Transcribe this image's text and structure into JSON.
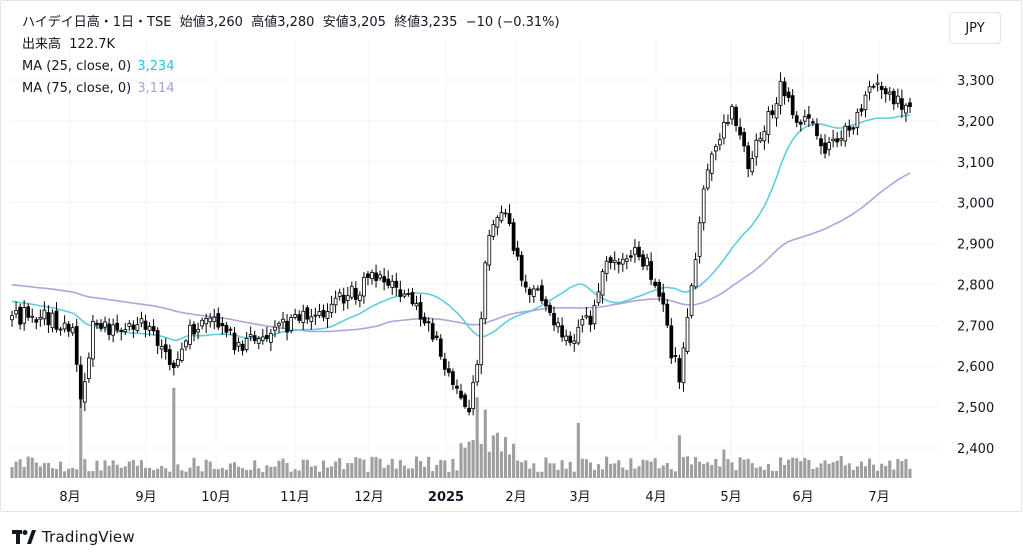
{
  "header": {
    "symbol_line": "ハイデイ日高・1日・TSE",
    "open_label": "始値",
    "open": "3,260",
    "high_label": "高値",
    "high": "3,280",
    "low_label": "安値",
    "low": "3,205",
    "close_label": "終値",
    "close": "3,235",
    "change": "−10 (−0.31%)",
    "volume_label": "出来高",
    "volume": "122.7K",
    "ma25_label": "MA (25, close, 0)",
    "ma25_value": "3,234",
    "ma75_label": "MA (75, close, 0)",
    "ma75_value": "3,114"
  },
  "currency_button": "JPY",
  "brand": "TradingView",
  "colors": {
    "up_candle": "#ffffff",
    "down_candle": "#000000",
    "wick": "#000000",
    "volume": "#9e9e9e",
    "ma25": "#5fcede",
    "ma75": "#b2a3e0",
    "grid": "#f0f3fa",
    "ma25_text": "#26c6da",
    "ma75_text": "#b39ddb"
  },
  "chart_data": {
    "type": "candlestick",
    "title": "ハイデイ日高・1日・TSE",
    "y_axis": {
      "ticks": [
        2400,
        2500,
        2600,
        2700,
        2800,
        2900,
        3000,
        3100,
        3200,
        3300
      ],
      "ylim": [
        2340,
        3370
      ],
      "position": "right"
    },
    "x_axis": {
      "tick_labels": [
        "8月",
        "9月",
        "10月",
        "11月",
        "12月",
        "2025",
        "2月",
        "3月",
        "4月",
        "5月",
        "6月",
        "7月"
      ],
      "bold_label": "2025"
    },
    "grid": true,
    "price_anchors": [
      [
        0,
        2720
      ],
      [
        8,
        2730
      ],
      [
        12,
        2690
      ],
      [
        15,
        2680
      ],
      [
        16,
        2600
      ],
      [
        17,
        2500
      ],
      [
        20,
        2690
      ],
      [
        24,
        2690
      ],
      [
        27,
        2700
      ],
      [
        30,
        2710
      ],
      [
        33,
        2700
      ],
      [
        36,
        2660
      ],
      [
        38,
        2620
      ],
      [
        40,
        2590
      ],
      [
        43,
        2680
      ],
      [
        46,
        2700
      ],
      [
        48,
        2720
      ],
      [
        50,
        2700
      ],
      [
        53,
        2680
      ],
      [
        56,
        2650
      ],
      [
        60,
        2670
      ],
      [
        64,
        2690
      ],
      [
        68,
        2700
      ],
      [
        72,
        2730
      ],
      [
        75,
        2720
      ],
      [
        80,
        2760
      ],
      [
        85,
        2780
      ],
      [
        88,
        2810
      ],
      [
        91,
        2830
      ],
      [
        95,
        2800
      ],
      [
        98,
        2760
      ],
      [
        101,
        2720
      ],
      [
        103,
        2720
      ],
      [
        105,
        2650
      ],
      [
        107,
        2600
      ],
      [
        110,
        2540
      ],
      [
        112,
        2510
      ],
      [
        113,
        2490
      ],
      [
        115,
        2600
      ],
      [
        117,
        2860
      ],
      [
        119,
        2960
      ],
      [
        121,
        2990
      ],
      [
        123,
        2930
      ],
      [
        125,
        2860
      ],
      [
        127,
        2800
      ],
      [
        129,
        2780
      ],
      [
        131,
        2760
      ],
      [
        133,
        2730
      ],
      [
        135,
        2690
      ],
      [
        137,
        2660
      ],
      [
        140,
        2690
      ],
      [
        143,
        2720
      ],
      [
        146,
        2830
      ],
      [
        149,
        2860
      ],
      [
        152,
        2870
      ],
      [
        155,
        2870
      ],
      [
        157,
        2850
      ],
      [
        159,
        2790
      ],
      [
        161,
        2760
      ],
      [
        163,
        2640
      ],
      [
        165,
        2580
      ],
      [
        166,
        2660
      ],
      [
        168,
        2790
      ],
      [
        170,
        2960
      ],
      [
        172,
        3080
      ],
      [
        174,
        3120
      ],
      [
        176,
        3180
      ],
      [
        178,
        3220
      ],
      [
        180,
        3160
      ],
      [
        182,
        3100
      ],
      [
        184,
        3150
      ],
      [
        186,
        3190
      ],
      [
        188,
        3230
      ],
      [
        190,
        3280
      ],
      [
        192,
        3250
      ],
      [
        194,
        3200
      ],
      [
        196,
        3220
      ],
      [
        198,
        3190
      ],
      [
        200,
        3150
      ],
      [
        202,
        3130
      ],
      [
        204,
        3150
      ],
      [
        206,
        3170
      ],
      [
        208,
        3190
      ],
      [
        210,
        3230
      ],
      [
        212,
        3270
      ],
      [
        214,
        3290
      ],
      [
        216,
        3260
      ],
      [
        218,
        3250
      ],
      [
        220,
        3240
      ],
      [
        222,
        3235
      ]
    ],
    "last_close": 3235,
    "ma25_last": 3234,
    "ma75_last": 3114
  }
}
